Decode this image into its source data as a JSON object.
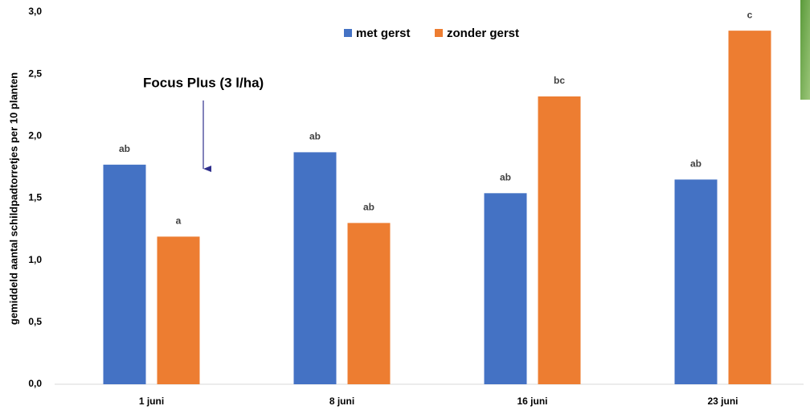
{
  "chart_data": {
    "type": "bar",
    "y_label": "gemiddeld aantal schildpadtorretjes per 10 planten",
    "annotation": "Focus Plus (3 l/ha)",
    "categories": [
      "1 juni",
      "8 juni",
      "16 juni",
      "23 juni"
    ],
    "series": [
      {
        "name": "met gerst",
        "color": "#4472c4",
        "values": [
          1.77,
          1.87,
          1.54,
          1.65
        ],
        "letters": [
          "ab",
          "ab",
          "ab",
          "ab"
        ]
      },
      {
        "name": "zonder gerst",
        "color": "#ed7d31",
        "values": [
          1.19,
          1.3,
          2.32,
          2.85
        ],
        "letters": [
          "a",
          "ab",
          "bc",
          "c"
        ]
      }
    ],
    "ylim": [
      0,
      3
    ],
    "yticks": [
      {
        "value": 0,
        "label": "0,0"
      },
      {
        "value": 0.5,
        "label": "0,5"
      },
      {
        "value": 1,
        "label": "1,0"
      },
      {
        "value": 1.5,
        "label": "1,5"
      },
      {
        "value": 2,
        "label": "2,0"
      },
      {
        "value": 2.5,
        "label": "2,5"
      },
      {
        "value": 3,
        "label": "3,0"
      }
    ],
    "grid": false
  }
}
